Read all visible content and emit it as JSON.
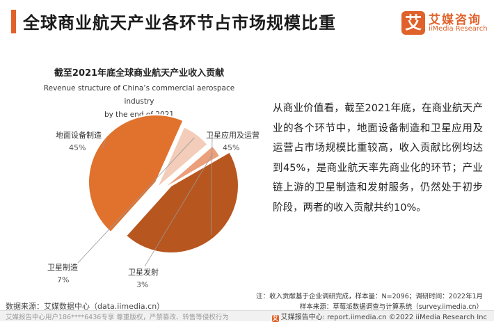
{
  "header": {
    "title": "全球商业航天产业各环节占市场规模比重",
    "logo_mark": "艾",
    "logo_cn": "艾媒咨询",
    "logo_en": "iiMedia Research"
  },
  "colors": {
    "accent": "#e0622a",
    "slices": [
      "#e0722e",
      "#b8561f",
      "#eb9f7b",
      "#f3cdb9"
    ]
  },
  "chart_data": {
    "type": "pie",
    "title": "截至2021年底全球商业航天产业收入贡献",
    "subtitle_en_line1": "Revenue structure of China’s commercial aerospace industry",
    "subtitle_en_line2": "by the end of 2021",
    "slices": [
      {
        "label": "地面设备制造",
        "value": 45,
        "value_label": "45%"
      },
      {
        "label": "卫星应用及运营",
        "value": 45,
        "value_label": "45%"
      },
      {
        "label": "卫星发射",
        "value": 3,
        "value_label": "3%"
      },
      {
        "label": "卫星制造",
        "value": 7,
        "value_label": "7%"
      }
    ],
    "legend": "none"
  },
  "body_text": "从商业价值看，截至2021年底，在商业航天产业的各个环节中，地面设备制造和卫星应用及运营占市场规模比重较高，收入贡献比例均达到45%，是商业航天率先商业化的环节；产业链上游的卫星制造和发射服务，仍然处于初步阶段，两者的收入贡献共约10%。",
  "notes": {
    "line1": "注：收入贡献基于企业调研完成，样本量：N=2096；调研时间：2022年1月",
    "line2": "样本来源：草莓派数据调查与计算系统（survey.iimedia.cn）"
  },
  "source": "数据来源：艾媒数据中心（data.iimedia.cn）",
  "footer": {
    "left": "艾媒报告中心用户186****6436专享 尊重版权，严禁篡改、转售等侵权行为",
    "right": "艾媒报告中心: report.iimedia.cn ©2022 iiMedia Research Inc",
    "icon": "艾"
  }
}
